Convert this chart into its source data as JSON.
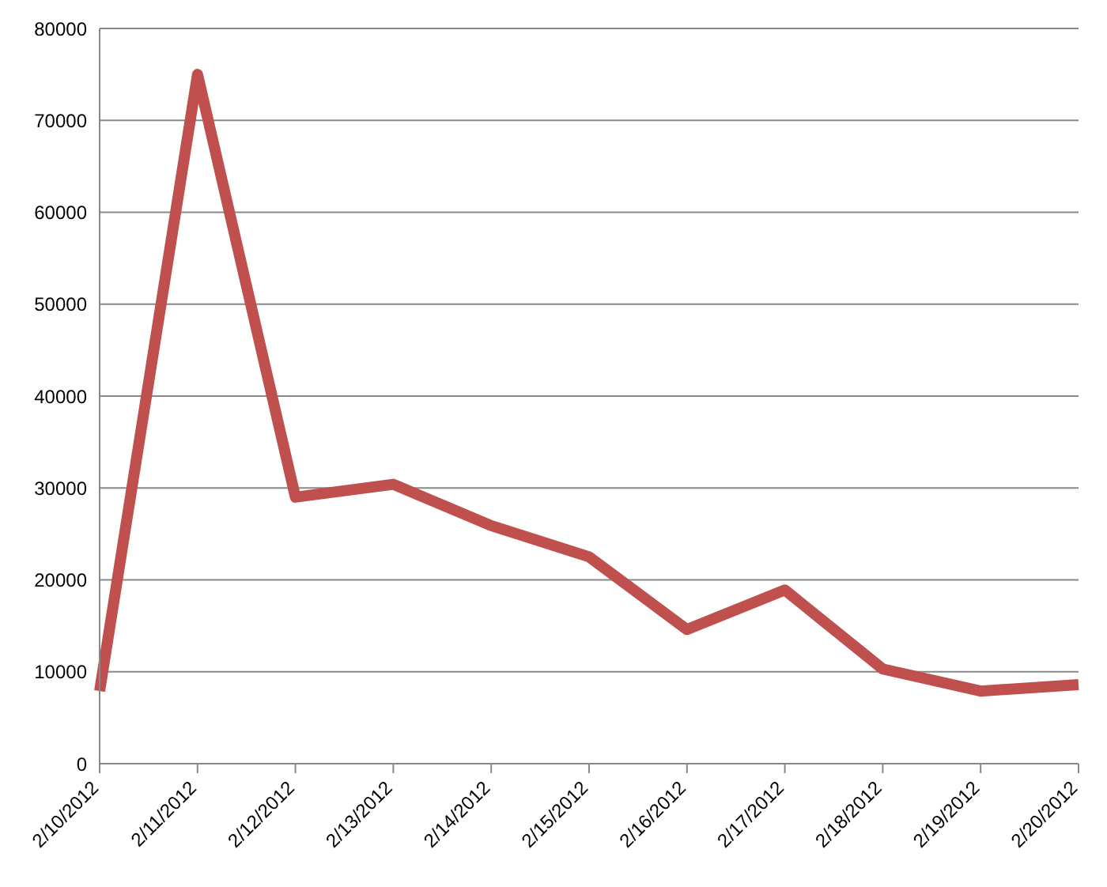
{
  "chart_data": {
    "type": "line",
    "categories": [
      "2/10/2012",
      "2/11/2012",
      "2/12/2012",
      "2/13/2012",
      "2/14/2012",
      "2/15/2012",
      "2/16/2012",
      "2/17/2012",
      "2/18/2012",
      "2/19/2012",
      "2/20/2012"
    ],
    "series": [
      {
        "color": "#c0504d",
        "values": [
          7900,
          75000,
          29000,
          30400,
          25900,
          22500,
          14600,
          18900,
          10300,
          7900,
          8600
        ]
      }
    ],
    "ylim": [
      0,
      80000
    ],
    "yticks": [
      0,
      10000,
      20000,
      30000,
      40000,
      50000,
      60000,
      70000,
      80000
    ],
    "grid": "y",
    "legend": false,
    "marker": "none",
    "line_style": "solid"
  }
}
